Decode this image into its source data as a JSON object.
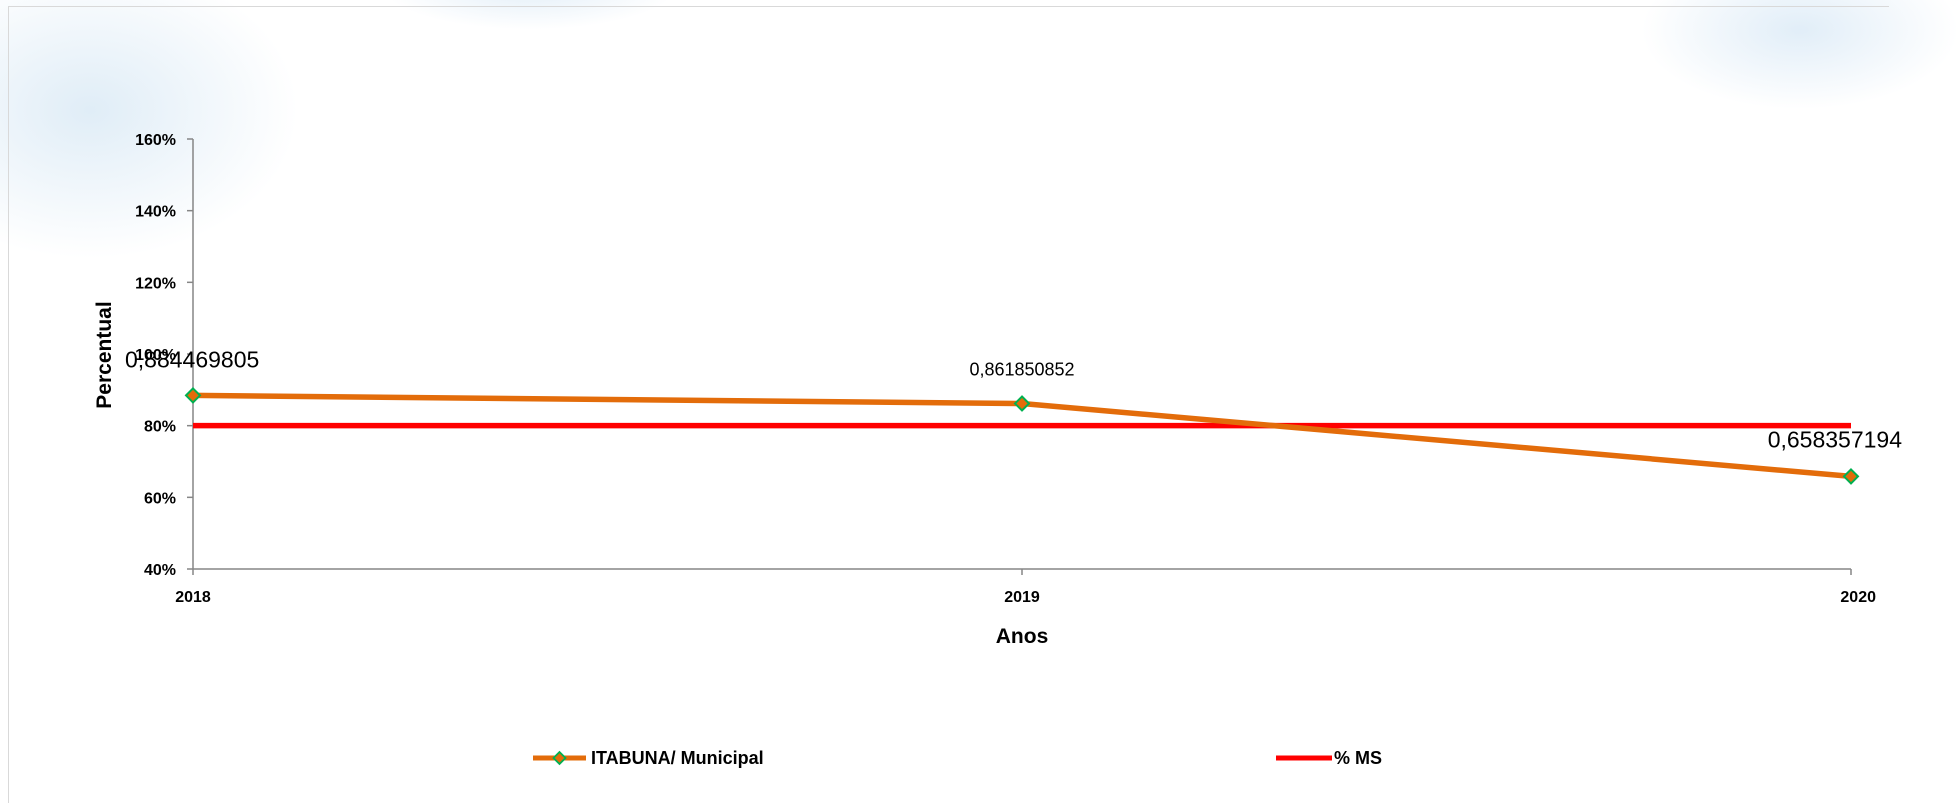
{
  "chart_data": {
    "type": "line",
    "title": "",
    "xlabel": "Anos",
    "ylabel": "Percentual",
    "x": [
      "2018",
      "2019",
      "2020"
    ],
    "ylim": [
      0.4,
      1.6
    ],
    "yticks": [
      {
        "value": 0.4,
        "label": "40%"
      },
      {
        "value": 0.6,
        "label": "60%"
      },
      {
        "value": 0.8,
        "label": "80%"
      },
      {
        "value": 1.0,
        "label": "100%"
      },
      {
        "value": 1.2,
        "label": "120%"
      },
      {
        "value": 1.4,
        "label": "140%"
      },
      {
        "value": 1.6,
        "label": "160%"
      }
    ],
    "grid": false,
    "legend_position": "bottom",
    "series": [
      {
        "name": "ITABUNA/ Municipal",
        "values": [
          0.884469805,
          0.861850852,
          0.658357194
        ],
        "data_labels": [
          "0,884469805",
          "0,861850852",
          "0,658357194"
        ],
        "line_color": "#e36c0a",
        "marker": "diamond",
        "marker_fill": "#e36c0a",
        "marker_edge": "#00b050"
      },
      {
        "name": "% MS",
        "values": [
          0.8,
          0.8,
          0.8
        ],
        "line_color": "#ff0000"
      }
    ]
  }
}
